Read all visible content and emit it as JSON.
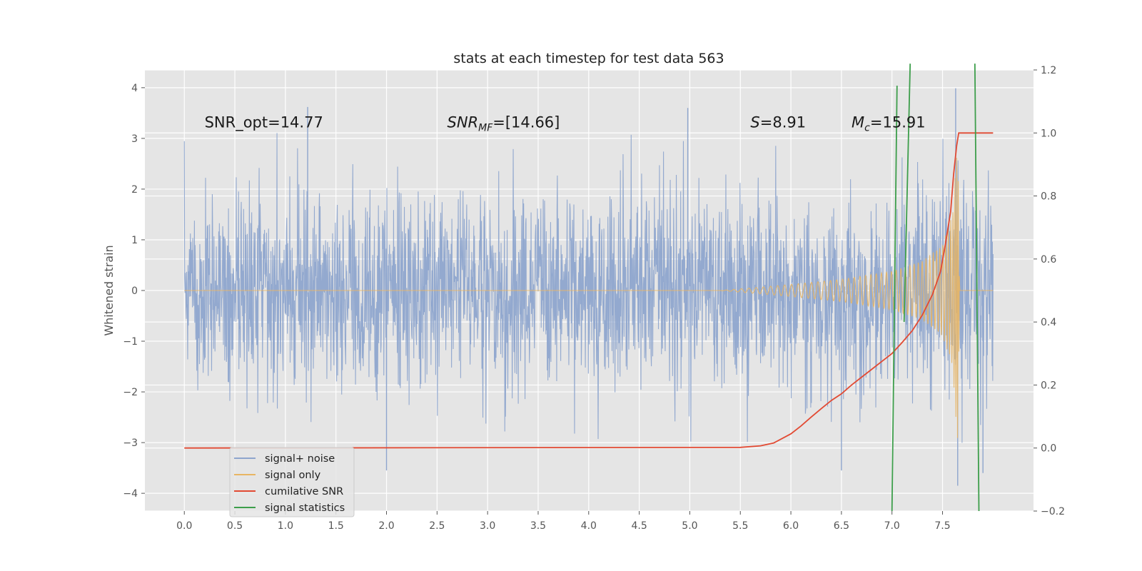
{
  "chart_data": {
    "type": "line",
    "title": "stats at each timestep for test data 563",
    "ylabel": "Whitened strain",
    "xlabel": "",
    "xlim": [
      -0.39,
      8.4
    ],
    "ylim": [
      -4.35,
      4.35
    ],
    "y2lim": [
      -0.2,
      1.2
    ],
    "x_ticks": [
      "0.0",
      "0.5",
      "1.0",
      "1.5",
      "2.0",
      "2.5",
      "3.0",
      "3.5",
      "4.0",
      "4.5",
      "5.0",
      "5.5",
      "6.0",
      "6.5",
      "7.0",
      "7.5"
    ],
    "y_ticks": [
      "−4",
      "−3",
      "−2",
      "−1",
      "0",
      "1",
      "2",
      "3",
      "4"
    ],
    "y2_ticks": [
      "−0.2",
      "0.0",
      "0.2",
      "0.4",
      "0.6",
      "0.8",
      "1.0",
      "1.2"
    ],
    "grid": true,
    "legend_position": "lower-left",
    "annotations": [
      {
        "text": "SNR_opt=14.77",
        "x": 0.2,
        "y": 3.22
      },
      {
        "text": "SNR_MF=[14.66]",
        "x": 2.6,
        "y": 3.22
      },
      {
        "text": "S=8.91",
        "x": 5.6,
        "y": 3.22
      },
      {
        "text": "M_c=15.91",
        "x": 6.6,
        "y": 3.22
      }
    ],
    "series": [
      {
        "name": "signal+ noise",
        "axis": "left",
        "color": "#8ea5cd",
        "x_range": [
          0.0,
          8.0
        ],
        "summary": {
          "typical_envelope": [
            -2.0,
            2.0
          ],
          "max": 4.0,
          "min": -3.85,
          "notable_spikes": [
            [
              1.22,
              3.62
            ],
            [
              2.0,
              -3.55
            ],
            [
              4.98,
              3.6
            ],
            [
              6.5,
              -3.55
            ],
            [
              7.63,
              3.99
            ],
            [
              7.65,
              -3.85
            ],
            [
              7.9,
              -3.6
            ]
          ]
        }
      },
      {
        "name": "signal only",
        "axis": "left",
        "color": "#e8b563",
        "x_range": [
          0.0,
          8.0
        ],
        "chirp_envelope": [
          [
            5.3,
            0.0
          ],
          [
            5.6,
            0.05
          ],
          [
            6.0,
            0.12
          ],
          [
            6.5,
            0.22
          ],
          [
            7.0,
            0.38
          ],
          [
            7.3,
            0.58
          ],
          [
            7.5,
            0.9
          ],
          [
            7.6,
            1.5
          ],
          [
            7.65,
            3.1
          ],
          [
            7.67,
            0.0
          ],
          [
            8.0,
            0.0
          ]
        ]
      },
      {
        "name": "cumilative SNR",
        "axis": "right",
        "color": "#e24a33",
        "points": [
          [
            0.0,
            0.0
          ],
          [
            5.5,
            0.002
          ],
          [
            5.7,
            0.007
          ],
          [
            5.83,
            0.016
          ],
          [
            6.0,
            0.045
          ],
          [
            6.1,
            0.07
          ],
          [
            6.2,
            0.098
          ],
          [
            6.3,
            0.125
          ],
          [
            6.4,
            0.151
          ],
          [
            6.5,
            0.172
          ],
          [
            6.6,
            0.2
          ],
          [
            6.7,
            0.225
          ],
          [
            6.8,
            0.25
          ],
          [
            6.9,
            0.275
          ],
          [
            7.0,
            0.3
          ],
          [
            7.1,
            0.335
          ],
          [
            7.2,
            0.372
          ],
          [
            7.3,
            0.422
          ],
          [
            7.4,
            0.487
          ],
          [
            7.48,
            0.56
          ],
          [
            7.53,
            0.65
          ],
          [
            7.58,
            0.75
          ],
          [
            7.61,
            0.87
          ],
          [
            7.64,
            0.96
          ],
          [
            7.66,
            1.0
          ],
          [
            8.0,
            1.0
          ]
        ]
      },
      {
        "name": "signal statistics",
        "axis": "right",
        "color": "#3d9e4b",
        "segments": [
          [
            [
              7.0,
              -0.2
            ],
            [
              7.05,
              1.15
            ]
          ],
          [
            [
              7.12,
              0.4
            ],
            [
              7.18,
              1.22
            ]
          ],
          [
            [
              7.82,
              1.22
            ],
            [
              7.86,
              -0.2
            ]
          ]
        ]
      }
    ]
  }
}
